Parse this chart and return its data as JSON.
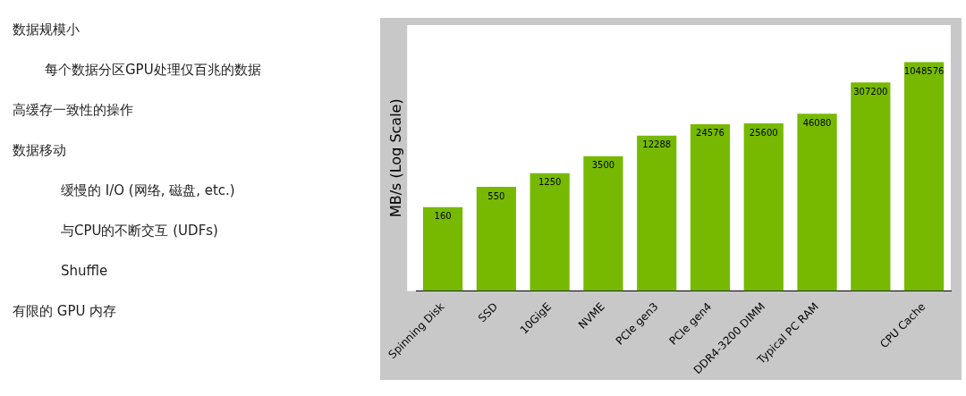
{
  "chart_data": [
    {
      "type": "other",
      "annotations": [
        "数据规模小",
        "每个数据分区GPU处理仅百兆的数据",
        "高缓存一致性的操作",
        "数据移动",
        "缓慢的 I/O (网络, 磁盘, etc.)",
        "与CPU的不断交互 (UDFs)",
        "Shuffle",
        "有限的 GPU 内存"
      ]
    },
    {
      "type": "bar",
      "ylabel": "MB/s (Log Scale)",
      "categories": [
        "Spinning Disk",
        "SSD",
        "10GigE",
        "NVME",
        "PCIe gen3",
        "PCIe gen4",
        "DDR4-3200 DIMM",
        "Typical PC RAM",
        null,
        "CPU Cache"
      ],
      "values": [
        160,
        550,
        1250,
        3500,
        12288,
        24576,
        25600,
        46080,
        307200,
        1048576
      ],
      "color": "#76b900",
      "ylim": [
        1,
        10000000
      ],
      "log": true,
      "data_labels": true,
      "tick_labels": "x"
    }
  ]
}
